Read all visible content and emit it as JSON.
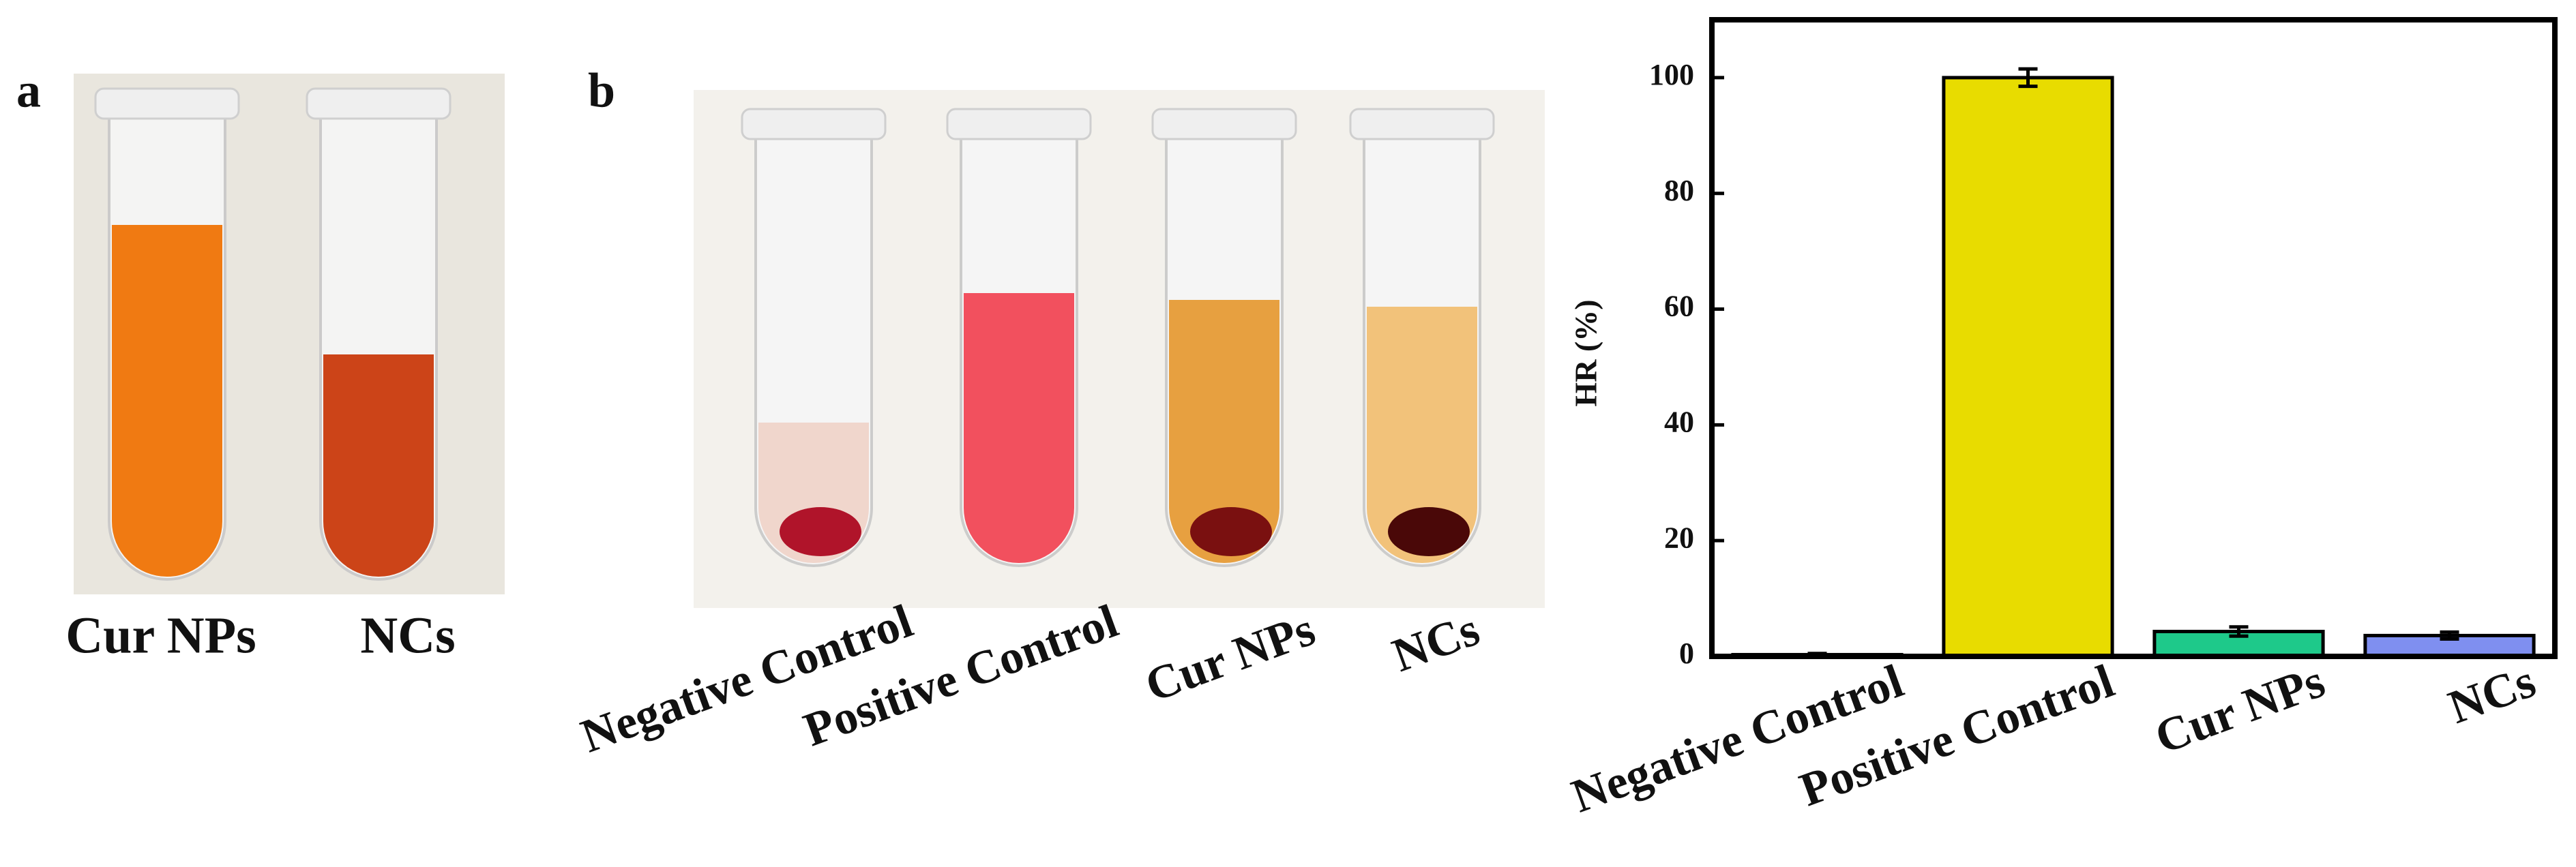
{
  "panels": {
    "a": {
      "label": "a",
      "captions": [
        "Cur NPs",
        "NCs"
      ]
    },
    "b": {
      "label": "b",
      "captions": [
        "Negative Control",
        "Positive Control",
        "Cur NPs",
        "NCs"
      ]
    }
  },
  "chart_data": {
    "type": "bar",
    "ylabel": "HR (%)",
    "categories": [
      "Negative Control",
      "Positive Control",
      "Cur NPs",
      "NCs"
    ],
    "values": [
      0.3,
      100,
      4.3,
      3.6
    ],
    "errors": [
      0.2,
      1.5,
      0.8,
      0.6
    ],
    "colors": [
      "#f4f4f4",
      "#e8dc00",
      "#1ec98a",
      "#7f8ff0"
    ],
    "ylim": [
      0,
      110
    ],
    "yticks": [
      0,
      20,
      40,
      60,
      80,
      100
    ],
    "grid": false
  }
}
